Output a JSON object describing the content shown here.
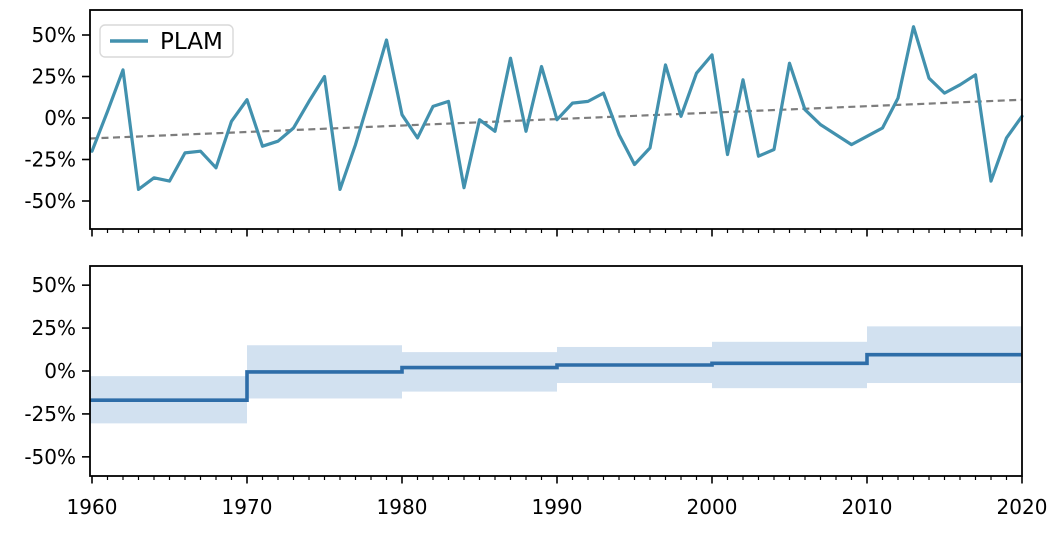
{
  "legend": {
    "label": "PLAM"
  },
  "colors": {
    "annual_line": "#4291ae",
    "trend_line": "#7d7d7d",
    "decadal_mean_line": "#2e6da8",
    "confidence_band": "#d2e1f0",
    "frame": "#000000",
    "legend_border": "#d9d9d9",
    "legend_background": "#ffffff"
  },
  "y_axis": {
    "tick_values": [
      50,
      25,
      0,
      -25,
      -50
    ],
    "tick_labels": [
      "50%",
      "25%",
      "0%",
      "-25%",
      "-50%"
    ]
  },
  "x_axis": {
    "range": [
      1960,
      2020
    ],
    "minor_tick_step": 1,
    "tick_values": [
      1960,
      1970,
      1980,
      1990,
      2000,
      2010,
      2020
    ],
    "tick_labels": [
      "1960",
      "1970",
      "1980",
      "1990",
      "2000",
      "2010",
      "2020"
    ]
  },
  "chart_data": [
    {
      "type": "line",
      "name": "annual-anomaly-series",
      "title": "",
      "xlabel": "",
      "ylabel": "",
      "grid": false,
      "legend_position": "upper left",
      "legend_entries": [
        "PLAM"
      ],
      "ylim": [
        -66,
        65
      ],
      "xlim": [
        1959.9,
        2020
      ],
      "years": [
        1960,
        1961,
        1962,
        1963,
        1964,
        1965,
        1966,
        1967,
        1968,
        1969,
        1970,
        1971,
        1972,
        1973,
        1974,
        1975,
        1976,
        1977,
        1978,
        1979,
        1980,
        1981,
        1982,
        1983,
        1984,
        1985,
        1986,
        1987,
        1988,
        1989,
        1990,
        1991,
        1992,
        1993,
        1994,
        1995,
        1996,
        1997,
        1998,
        1999,
        2000,
        2001,
        2002,
        2003,
        2004,
        2005,
        2006,
        2007,
        2008,
        2009,
        2010,
        2011,
        2012,
        2013,
        2014,
        2015,
        2016,
        2017,
        2018,
        2019,
        2020
      ],
      "values": [
        -20,
        4,
        29,
        -43,
        -36,
        -38,
        -21,
        -20,
        -30,
        -2,
        11,
        -17,
        -14,
        -6,
        10,
        25,
        -43,
        -16,
        15,
        47,
        2,
        -12,
        7,
        10,
        -42,
        -1,
        -8,
        36,
        -8,
        31,
        -1,
        9,
        10,
        15,
        -10,
        -28,
        -18,
        32,
        1,
        27,
        38,
        -22,
        23,
        -23,
        -19,
        33,
        5,
        -4,
        -10,
        -16,
        -11,
        -6,
        12,
        55,
        24,
        15,
        20,
        26,
        -38,
        -12,
        1
      ],
      "trendline": {
        "style": "dashed",
        "x": [
          1960,
          2020
        ],
        "values": [
          -12.3,
          11
        ]
      }
    },
    {
      "type": "step-with-band",
      "name": "decadal-mean-series",
      "title": "",
      "xlabel": "",
      "ylabel": "",
      "grid": false,
      "ylim": [
        -61,
        61
      ],
      "xlim": [
        1959.9,
        2020
      ],
      "decades": [
        {
          "start": 1960,
          "end": 1970,
          "mean": -17.0,
          "band": [
            -30.5,
            -3.0
          ]
        },
        {
          "start": 1970,
          "end": 1980,
          "mean": -0.5,
          "band": [
            -16.0,
            15.0
          ]
        },
        {
          "start": 1980,
          "end": 1990,
          "mean": 2.0,
          "band": [
            -12.0,
            11.0
          ]
        },
        {
          "start": 1990,
          "end": 2000,
          "mean": 3.5,
          "band": [
            -7.0,
            14.0
          ]
        },
        {
          "start": 2000,
          "end": 2010,
          "mean": 4.5,
          "band": [
            -10.0,
            17.0
          ]
        },
        {
          "start": 2010,
          "end": 2020,
          "mean": 9.5,
          "band": [
            -7.0,
            26.0
          ]
        }
      ]
    }
  ]
}
